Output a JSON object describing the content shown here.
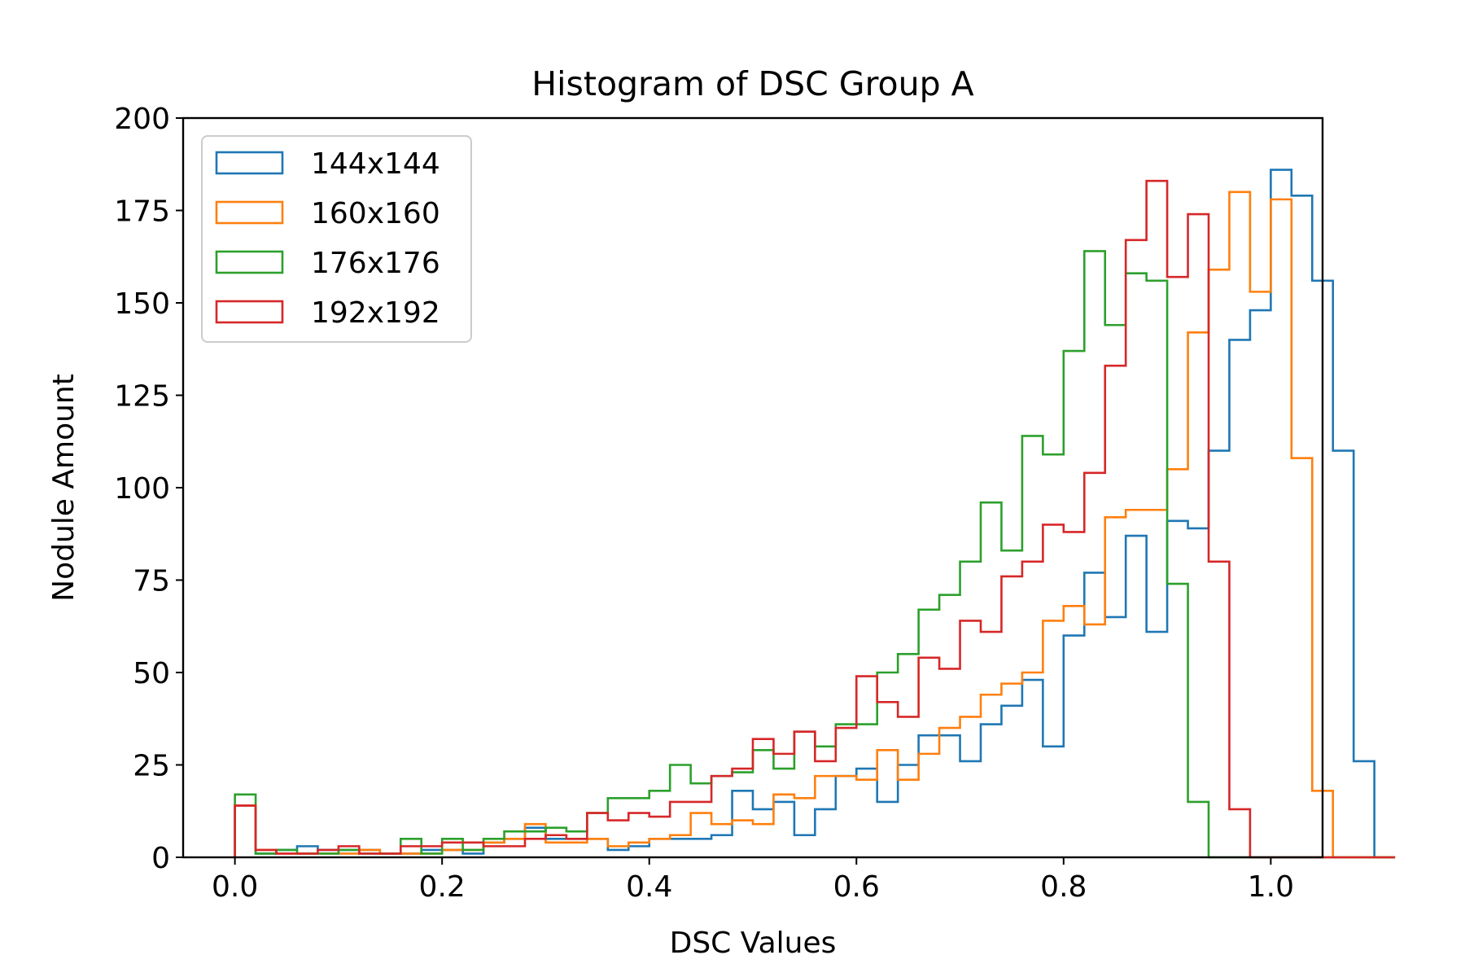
{
  "chart_data": {
    "type": "histogram",
    "title": "Histogram of DSC Group A",
    "xlabel": "DSC Values",
    "ylabel": "Nodule Amount",
    "xlim": [
      -0.05,
      1.05
    ],
    "ylim": [
      0,
      200
    ],
    "x_ticks": [
      0.0,
      0.2,
      0.4,
      0.6,
      0.8,
      1.0
    ],
    "x_tick_labels": [
      "0.0",
      "0.2",
      "0.4",
      "0.6",
      "0.8",
      "1.0"
    ],
    "y_ticks": [
      0,
      25,
      50,
      75,
      100,
      125,
      150,
      175,
      200
    ],
    "y_tick_labels": [
      "0",
      "25",
      "50",
      "75",
      "100",
      "125",
      "150",
      "175",
      "200"
    ],
    "bin_start": 0.0,
    "bin_width": 0.02,
    "legend_position": "top-left",
    "grid": false,
    "series": [
      {
        "name": "144x144",
        "color": "#1f77b4",
        "counts": [
          14,
          1,
          2,
          3,
          2,
          2,
          2,
          1,
          1,
          2,
          2,
          1,
          4,
          5,
          8,
          5,
          5,
          5,
          2,
          3,
          5,
          5,
          5,
          6,
          18,
          13,
          15,
          6,
          13,
          22,
          24,
          15,
          25,
          33,
          33,
          26,
          36,
          41,
          48,
          30,
          60,
          77,
          65,
          87,
          61,
          91,
          89,
          110,
          140,
          148,
          186,
          179,
          156,
          110,
          26,
          0
        ]
      },
      {
        "name": "160x160",
        "color": "#ff7f0e",
        "counts": [
          14,
          2,
          1,
          1,
          1,
          1,
          2,
          1,
          1,
          1,
          2,
          2,
          4,
          5,
          9,
          4,
          4,
          5,
          3,
          4,
          5,
          6,
          12,
          9,
          10,
          9,
          17,
          16,
          22,
          22,
          21,
          29,
          21,
          28,
          35,
          38,
          44,
          47,
          50,
          64,
          68,
          63,
          92,
          94,
          94,
          105,
          142,
          159,
          180,
          153,
          178,
          108,
          18,
          0,
          0,
          0
        ]
      },
      {
        "name": "176x176",
        "color": "#2ca02c",
        "counts": [
          17,
          1,
          2,
          1,
          1,
          2,
          1,
          1,
          5,
          1,
          5,
          2,
          5,
          7,
          7,
          8,
          7,
          12,
          16,
          16,
          18,
          25,
          20,
          22,
          23,
          29,
          24,
          34,
          30,
          36,
          36,
          50,
          55,
          67,
          71,
          80,
          96,
          83,
          114,
          109,
          137,
          164,
          144,
          158,
          156,
          74,
          15,
          0,
          0,
          0,
          0,
          0,
          0,
          0,
          0,
          0
        ]
      },
      {
        "name": "192x192",
        "color": "#d62728",
        "counts": [
          14,
          2,
          1,
          1,
          2,
          3,
          1,
          1,
          3,
          3,
          4,
          4,
          3,
          3,
          5,
          6,
          5,
          12,
          10,
          12,
          11,
          15,
          15,
          22,
          24,
          32,
          28,
          34,
          26,
          35,
          49,
          42,
          38,
          54,
          51,
          64,
          61,
          76,
          80,
          90,
          88,
          104,
          133,
          167,
          183,
          157,
          174,
          80,
          13,
          0,
          0,
          0,
          0,
          0,
          0,
          0
        ]
      }
    ]
  }
}
